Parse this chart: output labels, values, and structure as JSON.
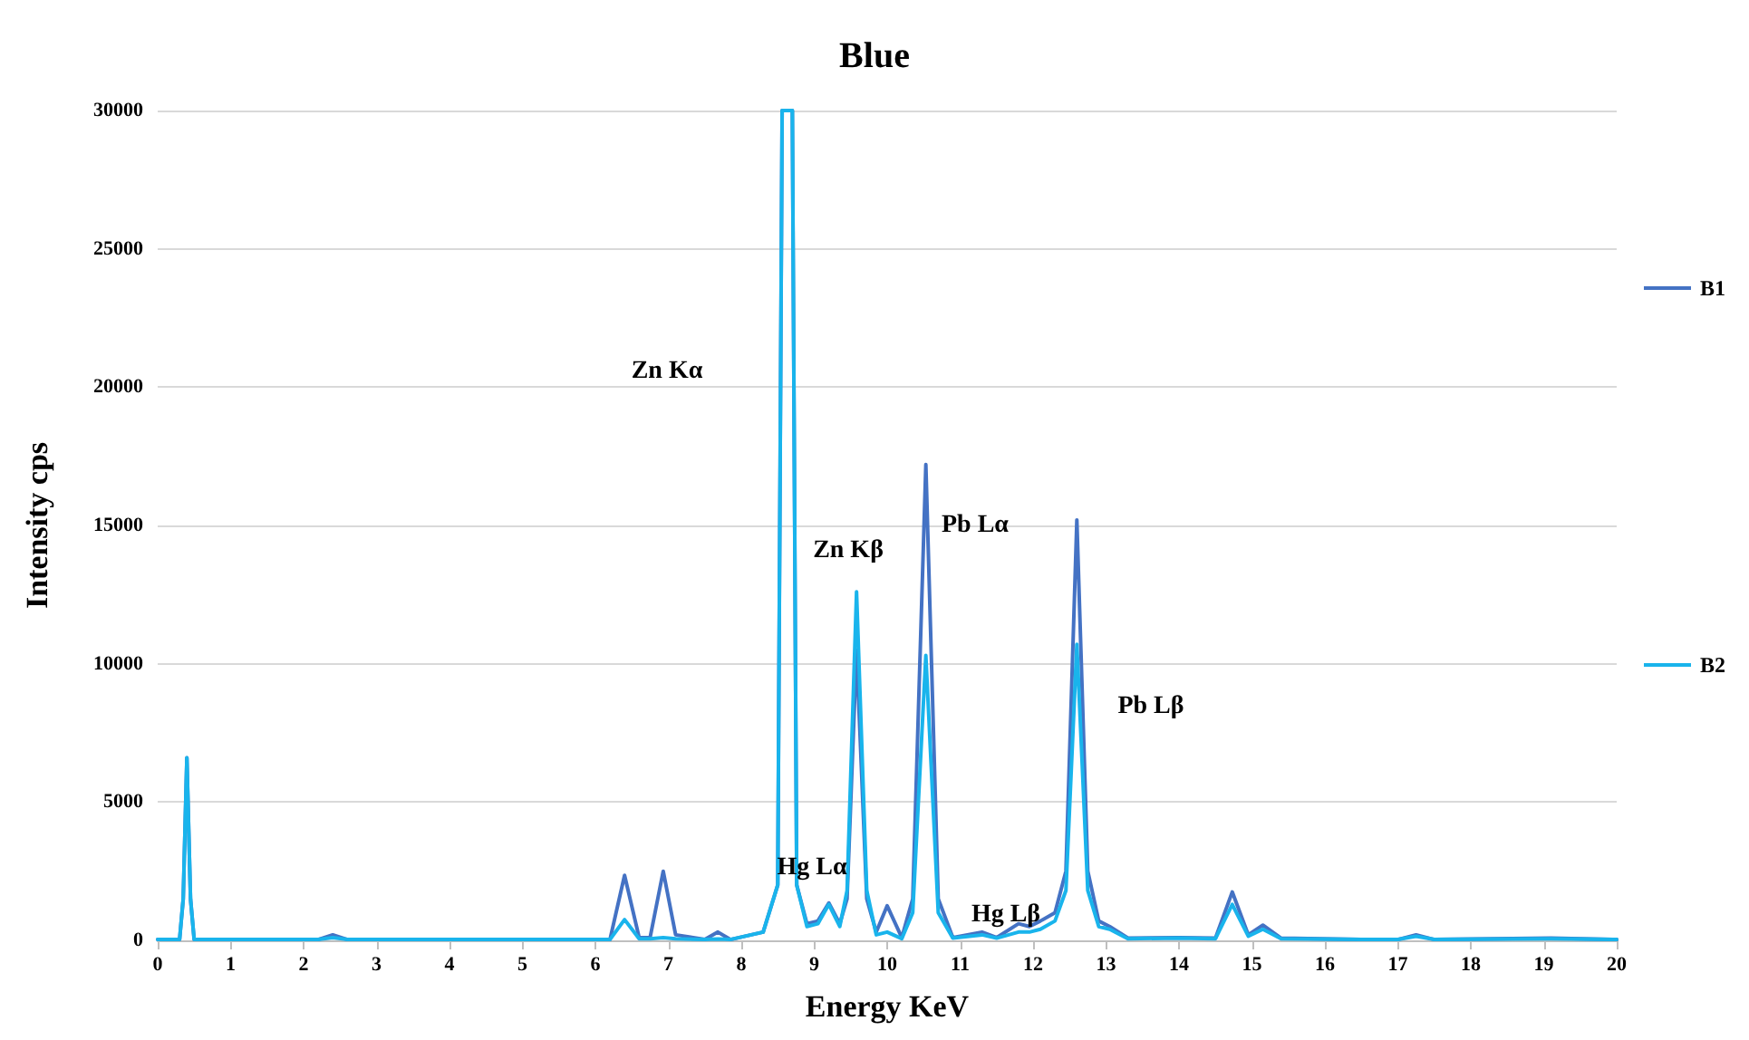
{
  "chart_data": {
    "type": "line",
    "title": "Blue",
    "xlabel": "Energy KeV",
    "ylabel": "Intensity cps",
    "x": [
      0,
      0.3,
      0.35,
      0.4,
      0.45,
      0.5,
      2.2,
      2.4,
      2.6,
      6.2,
      6.4,
      6.6,
      6.75,
      6.93,
      7.1,
      7.5,
      7.68,
      7.85,
      8.3,
      8.5,
      8.56,
      8.7,
      8.76,
      8.9,
      9.05,
      9.2,
      9.35,
      9.45,
      9.58,
      9.72,
      9.85,
      10.0,
      10.2,
      10.35,
      10.53,
      10.7,
      10.9,
      11.3,
      11.5,
      11.8,
      11.95,
      12.1,
      12.3,
      12.45,
      12.6,
      12.75,
      12.9,
      13.05,
      13.3,
      14.0,
      14.5,
      14.73,
      14.95,
      15.15,
      15.4,
      16.5,
      17.0,
      17.25,
      17.5,
      19.1,
      20
    ],
    "series": [
      {
        "name": "B1",
        "color": "#4472c4",
        "values": [
          30,
          30,
          1500,
          6600,
          1500,
          30,
          30,
          200,
          30,
          30,
          2350,
          100,
          100,
          2500,
          200,
          30,
          300,
          30,
          300,
          2000,
          30000,
          30000,
          2000,
          600,
          700,
          1350,
          600,
          1500,
          10500,
          1500,
          300,
          1250,
          100,
          1500,
          17200,
          1500,
          100,
          300,
          100,
          600,
          500,
          700,
          1000,
          2500,
          15200,
          2500,
          700,
          500,
          80,
          100,
          80,
          1750,
          200,
          550,
          80,
          30,
          30,
          200,
          30,
          80,
          30
        ]
      },
      {
        "name": "B2",
        "color": "#19b4ec",
        "values": [
          30,
          30,
          1500,
          6600,
          1500,
          30,
          30,
          100,
          30,
          30,
          750,
          60,
          60,
          100,
          60,
          30,
          50,
          30,
          300,
          2000,
          30000,
          30000,
          2000,
          500,
          600,
          1300,
          500,
          1800,
          12600,
          1800,
          200,
          300,
          60,
          1000,
          10300,
          1000,
          80,
          200,
          80,
          300,
          300,
          400,
          700,
          1800,
          10700,
          1800,
          500,
          400,
          60,
          80,
          60,
          1300,
          150,
          400,
          60,
          30,
          30,
          150,
          30,
          60,
          30
        ]
      }
    ],
    "annotations": [
      "Zn Kα",
      "Zn Kβ",
      "Pb Lα",
      "Pb Lβ",
      "Hg Lα",
      "Hg Lβ"
    ],
    "xlim": [
      0,
      20
    ],
    "xticks": [
      0,
      1,
      2,
      3,
      4,
      5,
      6,
      7,
      8,
      9,
      10,
      11,
      12,
      13,
      14,
      15,
      16,
      17,
      18,
      19,
      20
    ],
    "ylim": [
      0,
      30000
    ],
    "yticks": [
      0,
      5000,
      10000,
      15000,
      20000,
      25000,
      30000
    ],
    "grid": "y",
    "legend": "right",
    "marker": "none",
    "line_style": "solid"
  }
}
